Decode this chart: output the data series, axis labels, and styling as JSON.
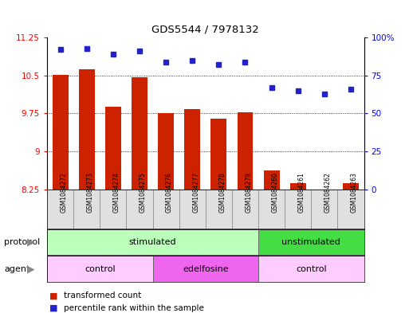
{
  "title": "GDS5544 / 7978132",
  "samples": [
    "GSM1084272",
    "GSM1084273",
    "GSM1084274",
    "GSM1084275",
    "GSM1084276",
    "GSM1084277",
    "GSM1084278",
    "GSM1084279",
    "GSM1084260",
    "GSM1084261",
    "GSM1084262",
    "GSM1084263"
  ],
  "transformed_count": [
    10.52,
    10.62,
    9.88,
    10.46,
    9.75,
    9.83,
    9.65,
    9.77,
    8.63,
    8.37,
    8.25,
    8.38
  ],
  "percentile_rank": [
    92,
    93,
    89,
    91,
    84,
    85,
    82,
    84,
    67,
    65,
    63,
    66
  ],
  "ymin": 8.25,
  "ymax": 11.25,
  "yticks_left": [
    8.25,
    9.0,
    9.75,
    10.5,
    11.25
  ],
  "ytick_labels_left": [
    "8.25",
    "9",
    "9.75",
    "10.5",
    "11.25"
  ],
  "yticks_right": [
    0,
    25,
    50,
    75,
    100
  ],
  "ytick_labels_right": [
    "0",
    "25",
    "50",
    "75",
    "100%"
  ],
  "bar_color": "#cc2200",
  "dot_color": "#2222cc",
  "bar_bottom": 8.25,
  "protocol_groups": [
    {
      "label": "stimulated",
      "start": 0,
      "end": 8,
      "color": "#bbffbb"
    },
    {
      "label": "unstimulated",
      "start": 8,
      "end": 12,
      "color": "#44dd44"
    }
  ],
  "agent_groups": [
    {
      "label": "control",
      "start": 0,
      "end": 4,
      "color": "#ffccff"
    },
    {
      "label": "edelfosine",
      "start": 4,
      "end": 8,
      "color": "#ee66ee"
    },
    {
      "label": "control",
      "start": 8,
      "end": 12,
      "color": "#ffccff"
    }
  ],
  "legend_bar_label": "transformed count",
  "legend_dot_label": "percentile rank within the sample",
  "protocol_label": "protocol",
  "agent_label": "agent",
  "gridline_yticks": [
    9.0,
    9.75,
    10.5
  ]
}
